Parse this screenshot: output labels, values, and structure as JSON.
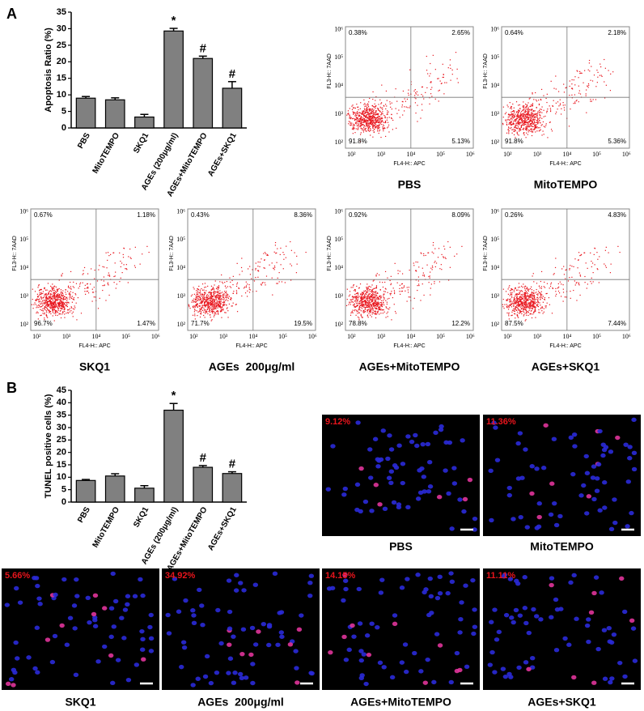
{
  "panel_labels": [
    "A",
    "B"
  ],
  "chart_data": [
    {
      "type": "bar",
      "y_label": "Apoptosis Ratio (%)",
      "categories": [
        "PBS",
        "MitoTEMPO",
        "SKQ1",
        "AGEs (200μg/ml)",
        "AGEs+MitoTEMPO",
        "AGEs+SKQ1"
      ],
      "values": [
        9,
        8.5,
        3.3,
        29.3,
        21,
        12
      ],
      "errors": [
        0.5,
        0.6,
        0.8,
        0.8,
        0.7,
        2
      ],
      "significance": [
        null,
        null,
        null,
        "*",
        "#",
        "#"
      ],
      "color": "#808080",
      "ylim": [
        0,
        35
      ],
      "yticks": [
        0,
        5,
        10,
        15,
        20,
        25,
        30,
        35
      ]
    },
    {
      "type": "bar",
      "y_label": "TUNEL positive cells (%)",
      "categories": [
        "PBS",
        "MitoTEMPO",
        "SKQ1",
        "AGEs (200μg/ml)",
        "AGEs+MitoTEMPO",
        "AGEs+SKQ1"
      ],
      "values": [
        8.7,
        10.5,
        5.6,
        37,
        14,
        11.5
      ],
      "errors": [
        0.4,
        0.9,
        1,
        2.7,
        0.7,
        0.7
      ],
      "significance": [
        null,
        null,
        null,
        "*",
        "#",
        "#"
      ],
      "color": "#808080",
      "ylim": [
        0,
        45
      ],
      "yticks": [
        0,
        5,
        10,
        15,
        20,
        25,
        30,
        35,
        40,
        45
      ]
    }
  ],
  "flow_axis": {
    "x_label": "FL4-H:: APC",
    "y_label": "FL3-H:: 7AAD",
    "ticks": [
      "10²",
      "10³",
      "10⁴",
      "10⁵",
      "10⁶"
    ]
  },
  "flow_plots": [
    {
      "title": "PBS",
      "quadrants": [
        "0.38%",
        "2.65%",
        "91.8%",
        "5.13%"
      ]
    },
    {
      "title": "MitoTEMPO",
      "quadrants": [
        "0.64%",
        "2.18%",
        "91.8%",
        "5.36%"
      ]
    },
    {
      "title": "SKQ1",
      "quadrants": [
        "0.67%",
        "1.18%",
        "96.7%",
        "1.47%"
      ]
    },
    {
      "title": "AGEs  200μg/ml",
      "quadrants": [
        "0.43%",
        "8.36%",
        "71.7%",
        "19.5%"
      ]
    },
    {
      "title": "AGEs+MitoTEMPO",
      "quadrants": [
        "0.92%",
        "8.09%",
        "78.8%",
        "12.2%"
      ]
    },
    {
      "title": "AGEs+SKQ1",
      "quadrants": [
        "0.26%",
        "4.83%",
        "87.5%",
        "7.44%"
      ]
    }
  ],
  "tunel_images": [
    {
      "title": "PBS",
      "percent": "9.12%"
    },
    {
      "title": "MitoTEMPO",
      "percent": "11.36%"
    },
    {
      "title": "SKQ1",
      "percent": "5.66%"
    },
    {
      "title": "AGEs  200μg/ml",
      "percent": "34.92%"
    },
    {
      "title": "AGEs+MitoTEMPO",
      "percent": "14.15%"
    },
    {
      "title": "AGEs+SKQ1",
      "percent": "11.11%"
    }
  ]
}
